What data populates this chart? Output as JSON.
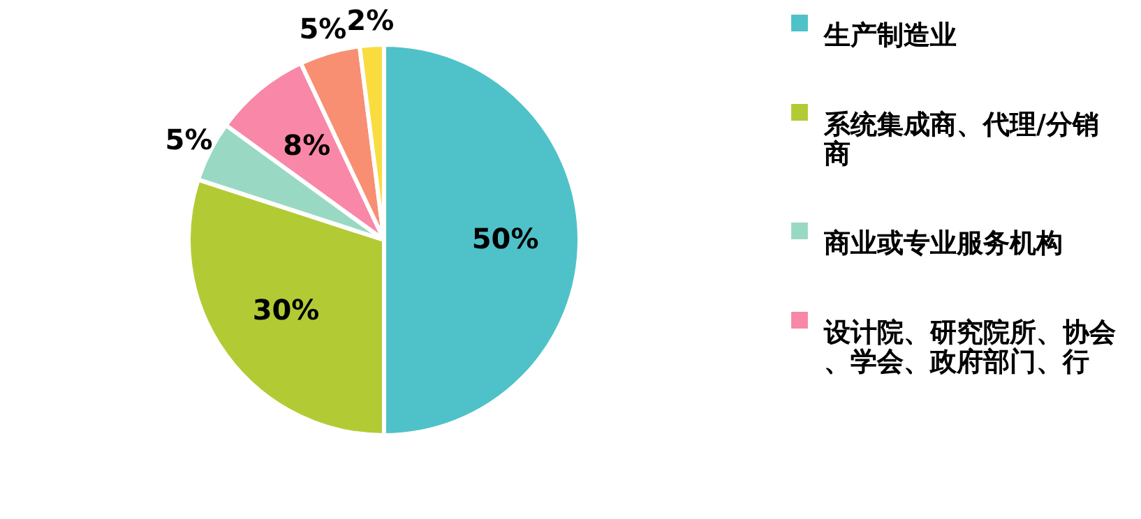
{
  "chart_data": {
    "type": "pie",
    "categories": [
      "生产制造业",
      "系统集成商、代理/分销商",
      "商业或专业服务机构",
      "设计院、研究院所、协会、学会、政府部门、行",
      null,
      null
    ],
    "values": [
      50,
      30,
      5,
      8,
      5,
      2
    ],
    "value_labels": [
      "50%",
      "30%",
      "5%",
      "8%",
      "5%",
      "2%"
    ],
    "colors": [
      "#4fc1c9",
      "#b2cb35",
      "#99d9c4",
      "#f887a8",
      "#f88f72",
      "#f9dc3f"
    ],
    "legend": "right"
  }
}
